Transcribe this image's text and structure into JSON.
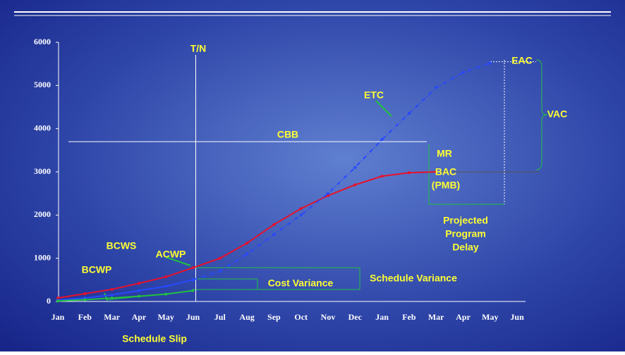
{
  "chart_data": {
    "type": "line",
    "categories": [
      "Jan",
      "Feb",
      "Mar",
      "Apr",
      "May",
      "Jun",
      "Jul",
      "Aug",
      "Sep",
      "Oct",
      "Nov",
      "Dec",
      "Jan",
      "Feb",
      "Mar",
      "Apr",
      "May",
      "Jun"
    ],
    "ylim": [
      0,
      6000
    ],
    "yticks": [
      0,
      1000,
      2000,
      3000,
      4000,
      5000,
      6000
    ],
    "series": [
      {
        "name": "BCWS",
        "color": "#e8102a",
        "style": "solid",
        "values": [
          80,
          180,
          280,
          420,
          570,
          780,
          1000,
          1350,
          1780,
          2150,
          2450,
          2700,
          2900,
          2980,
          3000,
          null,
          null,
          null
        ]
      },
      {
        "name": "ACWP",
        "color": "#2848ff",
        "style": "solid",
        "values": [
          30,
          80,
          150,
          250,
          350,
          500,
          null,
          null,
          null,
          null,
          null,
          null,
          null,
          null,
          null,
          null,
          null,
          null
        ]
      },
      {
        "name": "ETC",
        "color": "#2848ff",
        "style": "dashed",
        "values": [
          null,
          null,
          null,
          null,
          null,
          500,
          700,
          1100,
          1550,
          2000,
          2500,
          3100,
          3750,
          4350,
          4950,
          5300,
          5520,
          null
        ]
      },
      {
        "name": "BCWP",
        "color": "#22c040",
        "style": "solid",
        "values": [
          10,
          40,
          80,
          120,
          170,
          250,
          null,
          null,
          null,
          null,
          null,
          null,
          null,
          null,
          null,
          null,
          null,
          null
        ]
      }
    ],
    "cbb": {
      "label": "CBB",
      "value": 3700
    },
    "bac": {
      "lines": [
        "BAC",
        "(PMB)"
      ],
      "value": 3000
    },
    "eac": {
      "label": "EAC",
      "value": 5550
    },
    "annotations": {
      "time_now": "T/N",
      "mr": "MR",
      "vac": "VAC",
      "delay": [
        "Projected",
        "Program",
        "Delay"
      ],
      "cost_variance": "Cost Variance",
      "schedule_variance": "Schedule Variance",
      "schedule_slip": "Schedule Slip"
    }
  }
}
